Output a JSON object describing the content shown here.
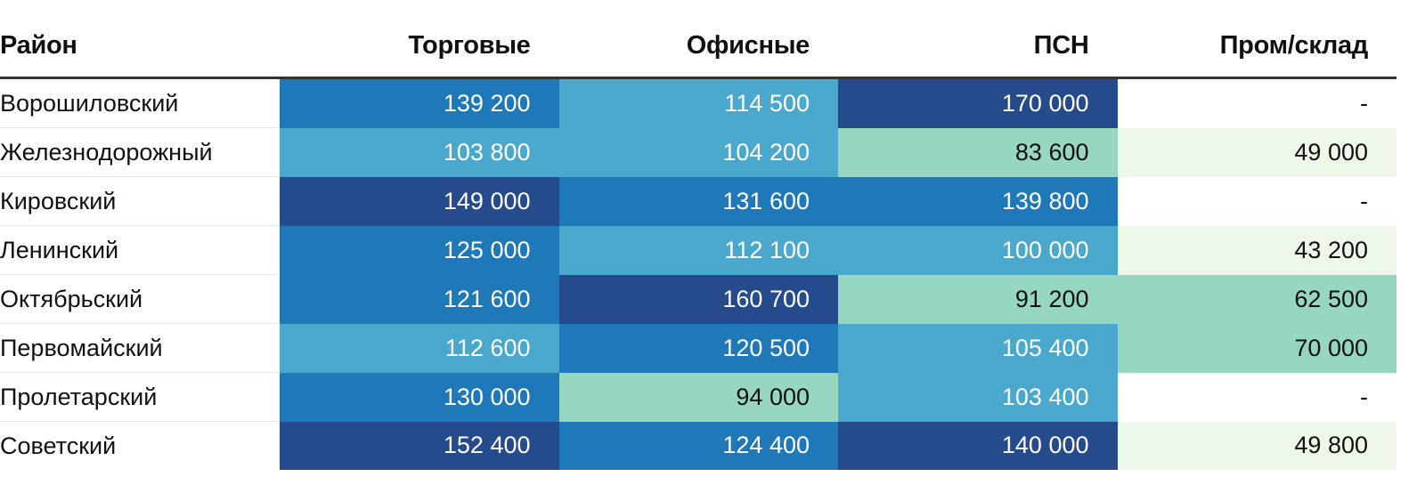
{
  "chart_data": {
    "type": "table",
    "columns": [
      "Район",
      "Торговые",
      "Офисные",
      "ПСН",
      "Пром/склад"
    ],
    "rows": [
      {
        "district": "Ворошиловский",
        "values": [
          "139 200",
          "114 500",
          "170 000",
          "-"
        ]
      },
      {
        "district": "Железнодорожный",
        "values": [
          "103 800",
          "104 200",
          "83 600",
          "49 000"
        ]
      },
      {
        "district": "Кировский",
        "values": [
          "149 000",
          "131 600",
          "139 800",
          "-"
        ]
      },
      {
        "district": "Ленинский",
        "values": [
          "125 000",
          "112 100",
          "100 000",
          "43 200"
        ]
      },
      {
        "district": "Октябрьский",
        "values": [
          "121 600",
          "160 700",
          "91 200",
          "62 500"
        ]
      },
      {
        "district": "Первомайский",
        "values": [
          "112 600",
          "120 500",
          "105 400",
          "70 000"
        ]
      },
      {
        "district": "Пролетарский",
        "values": [
          "130 000",
          "94 000",
          "103 400",
          "-"
        ]
      },
      {
        "district": "Советский",
        "values": [
          "152 400",
          "124 400",
          "140 000",
          "49 800"
        ]
      }
    ],
    "color_scale": {
      "thresholds": [
        50000,
        100000,
        120000,
        140000
      ],
      "colors": [
        "#edf8e8",
        "#97d6c0",
        "#4aa8cc",
        "#1f78b8",
        "#254b8c"
      ],
      "empty_color": "#ffffff",
      "light_text": "#ffffff",
      "dark_text": "#111111"
    }
  }
}
